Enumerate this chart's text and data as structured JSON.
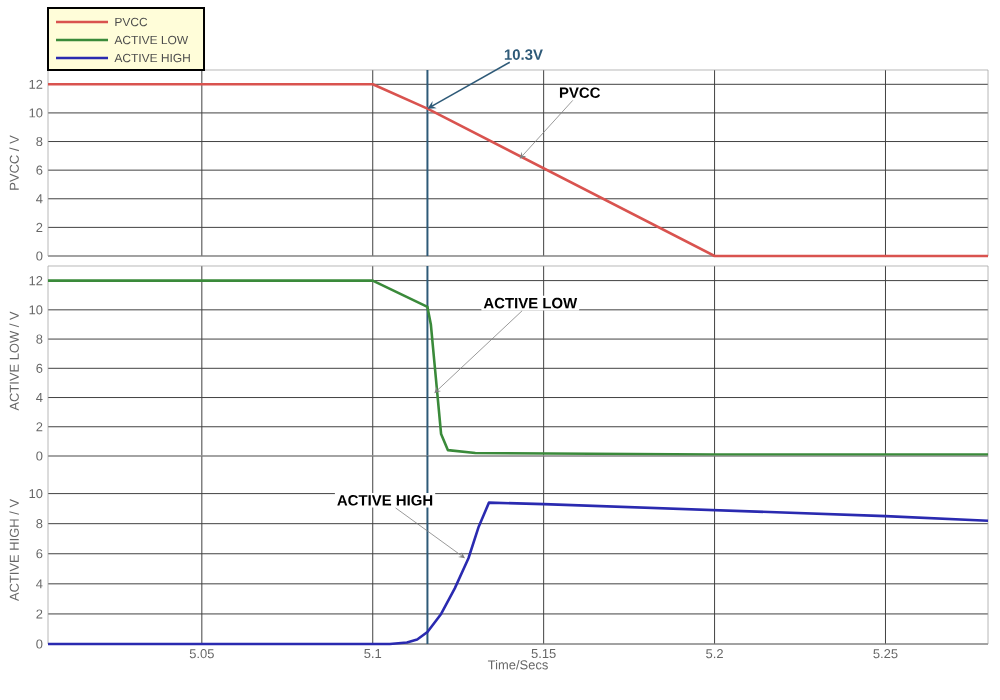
{
  "chart_data": [
    {
      "type": "line",
      "ylabel": "PVCC / V",
      "xlim": [
        5.005,
        5.28
      ],
      "ylim": [
        0,
        13
      ],
      "xticks": [
        5.05,
        5.1,
        5.15,
        5.2,
        5.25
      ],
      "yticks": [
        0,
        2,
        4,
        6,
        8,
        10,
        12
      ],
      "grid": true,
      "legend": "top left",
      "tick_labels": "y",
      "series": [
        {
          "name": "PVCC",
          "color": "#d9534f",
          "x": [
            5.005,
            5.1,
            5.116,
            5.2,
            5.28
          ],
          "values": [
            12,
            12,
            10.3,
            0,
            0
          ]
        }
      ],
      "ref_lines": [
        {
          "axis": "x",
          "value": 5.116,
          "color": "#2e5a78"
        }
      ],
      "annotations": [
        {
          "text": "10.3V",
          "x": 5.116,
          "y": 10.3
        },
        {
          "text": "PVCC",
          "x": 5.143,
          "y": 6.8
        }
      ]
    },
    {
      "type": "line",
      "ylabel": "ACTIVE LOW / V",
      "xlim": [
        5.005,
        5.28
      ],
      "ylim": [
        0,
        13
      ],
      "xticks": [
        5.05,
        5.1,
        5.15,
        5.2,
        5.25
      ],
      "yticks": [
        0,
        2,
        4,
        6,
        8,
        10,
        12
      ],
      "grid": true,
      "legend": "top left",
      "tick_labels": "y",
      "series": [
        {
          "name": "ACTIVE LOW",
          "color": "#3a8a3a",
          "x": [
            5.005,
            5.1,
            5.116,
            5.117,
            5.118,
            5.119,
            5.12,
            5.122,
            5.13,
            5.2,
            5.28
          ],
          "values": [
            12,
            12,
            10.2,
            9,
            6.5,
            4,
            1.5,
            0.4,
            0.2,
            0.1,
            0.1
          ]
        }
      ],
      "ref_lines": [
        {
          "axis": "x",
          "value": 5.116,
          "color": "#2e5a78"
        }
      ],
      "annotations": [
        {
          "text": "ACTIVE LOW",
          "x": 5.118,
          "y": 4.3
        }
      ]
    },
    {
      "type": "line",
      "ylabel": "ACTIVE HIGH / V",
      "xlabel": "Time/Secs",
      "xlim": [
        5.005,
        5.28
      ],
      "ylim": [
        0,
        12.5
      ],
      "xticks": [
        5.05,
        5.1,
        5.15,
        5.2,
        5.25
      ],
      "yticks": [
        0,
        2,
        4,
        6,
        8,
        10
      ],
      "grid": true,
      "legend": "top left",
      "series": [
        {
          "name": "ACTIVE HIGH",
          "color": "#2a2ab0",
          "x": [
            5.005,
            5.105,
            5.11,
            5.113,
            5.116,
            5.12,
            5.124,
            5.128,
            5.131,
            5.134,
            5.15,
            5.2,
            5.25,
            5.28
          ],
          "values": [
            0,
            0,
            0.1,
            0.3,
            0.8,
            2,
            3.7,
            5.7,
            7.8,
            9.4,
            9.3,
            8.9,
            8.5,
            8.2
          ]
        }
      ],
      "ref_lines": [
        {
          "axis": "x",
          "value": 5.116,
          "color": "#2e5a78"
        }
      ],
      "annotations": [
        {
          "text": "ACTIVE HIGH",
          "x": 5.127,
          "y": 5.7
        }
      ]
    }
  ]
}
